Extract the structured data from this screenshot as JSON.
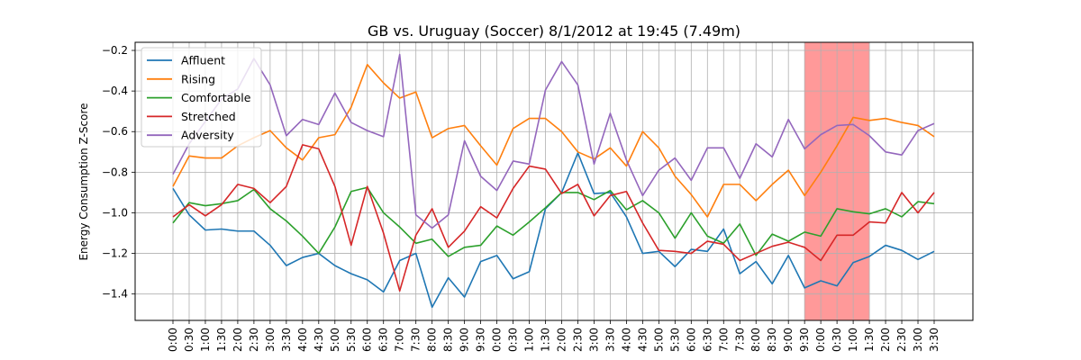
{
  "chart_data": {
    "type": "line",
    "title": "GB vs. Uruguay (Soccer) 8/1/2012 at 19:45 (7.49m)",
    "xlabel": "",
    "ylabel": "Energy Consumption Z-Score",
    "ylim": [
      -1.53,
      -0.16
    ],
    "yticks": [
      -1.4,
      -1.2,
      -1.0,
      -0.8,
      -0.6,
      -0.4,
      -0.2
    ],
    "ytick_labels": [
      "−1.4",
      "−1.2",
      "−1.0",
      "−0.8",
      "−0.6",
      "−0.4",
      "−0.2"
    ],
    "grid": true,
    "legend_position": "top-left",
    "highlight": {
      "from_index": 39,
      "to_index": 43,
      "color": "#ff9999"
    },
    "x": [
      "0:00",
      "0:30",
      "1:00",
      "1:30",
      "2:00",
      "2:30",
      "3:00",
      "3:30",
      "4:00",
      "4:30",
      "5:00",
      "5:30",
      "6:00",
      "6:30",
      "7:00",
      "7:30",
      "8:00",
      "8:30",
      "9:00",
      "9:30",
      "0:00",
      "0:30",
      "1:00",
      "1:30",
      "2:00",
      "2:30",
      "3:00",
      "3:30",
      "4:00",
      "4:30",
      "5:00",
      "5:30",
      "6:00",
      "6:30",
      "7:00",
      "7:30",
      "8:00",
      "8:30",
      "9:00",
      "9:30",
      "0:00",
      "0:30",
      "1:00",
      "1:30",
      "2:00",
      "2:30",
      "3:00",
      "3:30"
    ],
    "series": [
      {
        "name": "Affluent",
        "color": "#1f77b4",
        "values": [
          -0.88,
          -1.01,
          -1.085,
          -1.08,
          -1.09,
          -1.09,
          -1.16,
          -1.26,
          -1.22,
          -1.2,
          -1.26,
          -1.3,
          -1.33,
          -1.39,
          -1.235,
          -1.2,
          -1.465,
          -1.32,
          -1.415,
          -1.24,
          -1.21,
          -1.325,
          -1.29,
          -0.98,
          -0.9,
          -0.705,
          -0.905,
          -0.9,
          -1.02,
          -1.2,
          -1.19,
          -1.265,
          -1.18,
          -1.19,
          -1.08,
          -1.3,
          -1.24,
          -1.35,
          -1.21,
          -1.37,
          -1.335,
          -1.36,
          -1.245,
          -1.215,
          -1.16,
          -1.185,
          -1.23,
          -1.19
        ]
      },
      {
        "name": "Rising",
        "color": "#ff7f0e",
        "values": [
          -0.87,
          -0.72,
          -0.73,
          -0.73,
          -0.67,
          -0.63,
          -0.595,
          -0.68,
          -0.74,
          -0.63,
          -0.615,
          -0.48,
          -0.27,
          -0.36,
          -0.435,
          -0.405,
          -0.63,
          -0.585,
          -0.57,
          -0.67,
          -0.765,
          -0.585,
          -0.535,
          -0.535,
          -0.6,
          -0.7,
          -0.735,
          -0.68,
          -0.77,
          -0.6,
          -0.68,
          -0.82,
          -0.91,
          -1.02,
          -0.86,
          -0.86,
          -0.94,
          -0.86,
          -0.79,
          -0.915,
          -0.8,
          -0.67,
          -0.53,
          -0.545,
          -0.535,
          -0.555,
          -0.57,
          -0.625
        ]
      },
      {
        "name": "Comfortable",
        "color": "#2ca02c",
        "values": [
          -1.05,
          -0.95,
          -0.965,
          -0.955,
          -0.94,
          -0.885,
          -0.98,
          -1.04,
          -1.115,
          -1.2,
          -1.07,
          -0.895,
          -0.875,
          -1.0,
          -1.07,
          -1.15,
          -1.13,
          -1.215,
          -1.17,
          -1.16,
          -1.065,
          -1.11,
          -1.045,
          -0.975,
          -0.9,
          -0.9,
          -0.935,
          -0.89,
          -0.985,
          -0.94,
          -1.0,
          -1.125,
          -1.0,
          -1.115,
          -1.15,
          -1.055,
          -1.21,
          -1.105,
          -1.14,
          -1.095,
          -1.115,
          -0.98,
          -0.995,
          -1.005,
          -0.98,
          -1.02,
          -0.945,
          -0.955
        ]
      },
      {
        "name": "Stretched",
        "color": "#d62728",
        "values": [
          -1.02,
          -0.96,
          -1.015,
          -0.96,
          -0.86,
          -0.88,
          -0.95,
          -0.87,
          -0.665,
          -0.685,
          -0.87,
          -1.16,
          -0.87,
          -1.1,
          -1.385,
          -1.11,
          -0.98,
          -1.17,
          -1.09,
          -0.97,
          -1.025,
          -0.88,
          -0.77,
          -0.785,
          -0.905,
          -0.86,
          -1.015,
          -0.915,
          -0.895,
          -1.05,
          -1.185,
          -1.19,
          -1.2,
          -1.14,
          -1.155,
          -1.235,
          -1.2,
          -1.165,
          -1.145,
          -1.17,
          -1.235,
          -1.11,
          -1.11,
          -1.045,
          -1.05,
          -0.9,
          -1.0,
          -0.9
        ]
      },
      {
        "name": "Adversity",
        "color": "#9467bd",
        "values": [
          -0.81,
          -0.66,
          -0.55,
          -0.44,
          -0.39,
          -0.24,
          -0.37,
          -0.62,
          -0.54,
          -0.565,
          -0.41,
          -0.555,
          -0.595,
          -0.625,
          -0.22,
          -1.01,
          -1.075,
          -1.01,
          -0.645,
          -0.82,
          -0.89,
          -0.745,
          -0.76,
          -0.395,
          -0.255,
          -0.37,
          -0.76,
          -0.51,
          -0.74,
          -0.915,
          -0.79,
          -0.73,
          -0.84,
          -0.68,
          -0.68,
          -0.83,
          -0.66,
          -0.725,
          -0.54,
          -0.685,
          -0.615,
          -0.57,
          -0.565,
          -0.62,
          -0.7,
          -0.715,
          -0.595,
          -0.56
        ]
      }
    ]
  }
}
